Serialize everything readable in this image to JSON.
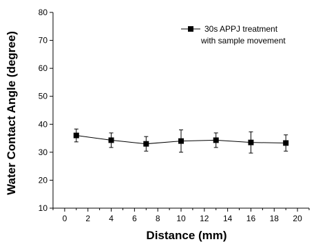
{
  "chart_data": {
    "type": "scatter",
    "title": "",
    "xlabel": "Distance (mm)",
    "ylabel": "Water Contact Angle (degree)",
    "xlim": [
      -1,
      21
    ],
    "ylim": [
      10,
      80
    ],
    "xticks": [
      0,
      2,
      4,
      6,
      8,
      10,
      12,
      14,
      16,
      18,
      20
    ],
    "yticks": [
      10,
      20,
      30,
      40,
      50,
      60,
      70,
      80
    ],
    "grid": false,
    "legend_position": "top-right",
    "series": [
      {
        "name_lines": [
          "30s APPJ treatment",
          "with sample movement"
        ],
        "color": "#000000",
        "marker": "square",
        "points": [
          {
            "x": 1,
            "y": 36.0,
            "err": 2.3
          },
          {
            "x": 4,
            "y": 34.3,
            "err": 2.6
          },
          {
            "x": 7,
            "y": 33.0,
            "err": 2.6
          },
          {
            "x": 10,
            "y": 34.0,
            "err": 4.0
          },
          {
            "x": 13,
            "y": 34.3,
            "err": 2.6
          },
          {
            "x": 16,
            "y": 33.5,
            "err": 3.8
          },
          {
            "x": 19,
            "y": 33.3,
            "err": 2.9
          }
        ]
      }
    ]
  }
}
